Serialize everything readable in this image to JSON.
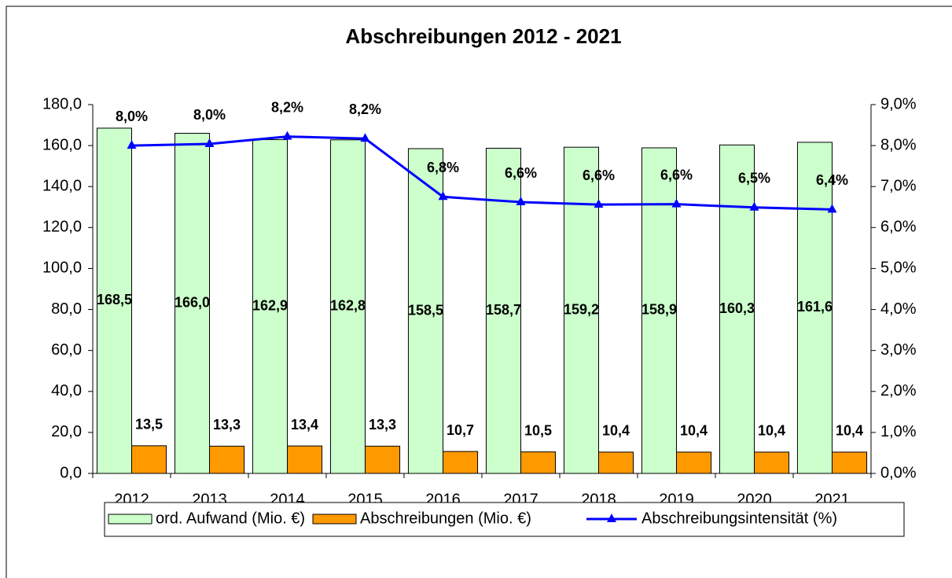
{
  "chart_data": {
    "type": "bar",
    "title": "Abschreibungen 2012 - 2021",
    "categories": [
      "2012",
      "2013",
      "2014",
      "2015",
      "2016",
      "2017",
      "2018",
      "2019",
      "2020",
      "2021"
    ],
    "series": [
      {
        "name": "ord. Aufwand (Mio. €)",
        "type": "bar",
        "color": "#ccffcc",
        "values": [
          168.5,
          166.0,
          162.9,
          162.8,
          158.5,
          158.7,
          159.2,
          158.9,
          160.3,
          161.6
        ],
        "value_labels": [
          "168,5",
          "166,0",
          "162,9",
          "162,8",
          "158,5",
          "158,7",
          "159,2",
          "158,9",
          "160,3",
          "161,6"
        ]
      },
      {
        "name": "Abschreibungen (Mio. €)",
        "type": "bar",
        "color": "#ff9900",
        "values": [
          13.5,
          13.3,
          13.4,
          13.3,
          10.7,
          10.5,
          10.4,
          10.4,
          10.4,
          10.4
        ],
        "value_labels": [
          "13,5",
          "13,3",
          "13,4",
          "13,3",
          "10,7",
          "10,5",
          "10,4",
          "10,4",
          "10,4",
          "10,4"
        ]
      },
      {
        "name": "Abschreibungsintensität (%)",
        "type": "line",
        "axis": "y2",
        "color": "#0000ff",
        "values": [
          8.0,
          8.04,
          8.22,
          8.17,
          6.75,
          6.62,
          6.56,
          6.57,
          6.49,
          6.44
        ],
        "value_labels": [
          "8,0%",
          "8,0%",
          "8,2%",
          "8,2%",
          "6,8%",
          "6,6%",
          "6,6%",
          "6,6%",
          "6,5%",
          "6,4%"
        ]
      }
    ],
    "ylim": [
      0,
      180
    ],
    "yticks": [
      {
        "value": 0,
        "label": "0,0"
      },
      {
        "value": 20,
        "label": "20,0"
      },
      {
        "value": 40,
        "label": "40,0"
      },
      {
        "value": 60,
        "label": "60,0"
      },
      {
        "value": 80,
        "label": "80,0"
      },
      {
        "value": 100,
        "label": "100,0"
      },
      {
        "value": 120,
        "label": "120,0"
      },
      {
        "value": 140,
        "label": "140,0"
      },
      {
        "value": 160,
        "label": "160,0"
      },
      {
        "value": 180,
        "label": "180,0"
      }
    ],
    "y2lim": [
      0,
      9
    ],
    "y2ticks": [
      {
        "value": 0,
        "label": "0,0%"
      },
      {
        "value": 1,
        "label": "1,0%"
      },
      {
        "value": 2,
        "label": "2,0%"
      },
      {
        "value": 3,
        "label": "3,0%"
      },
      {
        "value": 4,
        "label": "4,0%"
      },
      {
        "value": 5,
        "label": "5,0%"
      },
      {
        "value": 6,
        "label": "6,0%"
      },
      {
        "value": 7,
        "label": "7,0%"
      },
      {
        "value": 8,
        "label": "8,0%"
      },
      {
        "value": 9,
        "label": "9,0%"
      }
    ],
    "legend": "bottom"
  }
}
